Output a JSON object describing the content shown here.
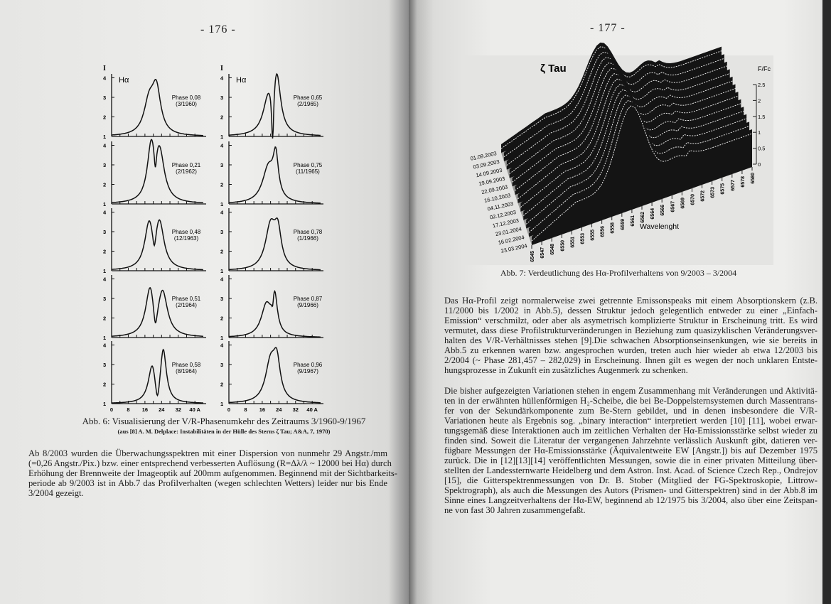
{
  "left_page": {
    "page_number": "- 176 -",
    "figure": {
      "y_axis_label": "I",
      "line_label": "Hα",
      "y_tick_labels": [
        "1",
        "2",
        "3",
        "4"
      ],
      "x_tick_labels": [
        "0",
        "8",
        "16",
        "24",
        "32",
        "40 A"
      ],
      "panels": [
        {
          "phase": "Phase 0,08",
          "date": "(3/1960)"
        },
        {
          "phase": "Phase 0,21",
          "date": "(2/1962)"
        },
        {
          "phase": "Phase 0,48",
          "date": "(12/1963)"
        },
        {
          "phase": "Phase 0,51",
          "date": "(2/1964)"
        },
        {
          "phase": "Phase 0,58",
          "date": "(8/1964)"
        },
        {
          "phase": "Phase 0,65",
          "date": "(2/1965)"
        },
        {
          "phase": "Phase 0,75",
          "date": "(11/1965)"
        },
        {
          "phase": "Phase 0,78",
          "date": "(1/1966)"
        },
        {
          "phase": "Phase 0,87",
          "date": "(9/1966)"
        },
        {
          "phase": "Phase 0,96",
          "date": "(9/1967)"
        }
      ]
    },
    "caption": "Abb. 6:  Visualisierung der V/R-Phasenumkehr des Zeitraums 3/1960-9/1967",
    "citation": "(aus [8] A. M. Delplace: Instabilitäten in der Hülle des Sterns ζ Tau; A&A, 7, 1970)",
    "paragraph": [
      "Ab 8/2003 wurden die Überwachungsspektren mit einer Dispersion von nunmehr 29 Angstr./mm",
      "(=0,26 Angstr./Pix.) bzw. einer entsprechend verbesserten Auflösung (R=Δλ/λ ~ 12000 bei Hα) durch",
      "Erhöhung der Brennweite der Imageoptik auf 200mm aufgenommen. Beginnend mit der Sichtbarkeits-",
      "periode ab 9/2003 ist in Abb.7 das Profilverhalten (wegen schlechten Wetters) leider nur bis Ende",
      "3/2004 gezeigt."
    ]
  },
  "right_page": {
    "page_number": "- 177 -",
    "figure": {
      "title": "ζ Tau",
      "z_label": "F/Fc",
      "z_tick_labels": [
        "0",
        "0.5",
        "1",
        "1.5",
        "2",
        "2.5"
      ],
      "dates": [
        "01.09.2003",
        "03.09.2003",
        "14.09.2003",
        "19.09.2003",
        "22.09.2003",
        "16.10.2003",
        "04.11.2003",
        "02.12.2003",
        "17.12.2003",
        "23.01.2004",
        "16.02.2004",
        "23.03.2004"
      ],
      "wavelengths": [
        "6545",
        "6547",
        "6548",
        "6550",
        "6551",
        "6553",
        "6555",
        "6556",
        "6558",
        "6559",
        "6561",
        "6562",
        "6564",
        "6566",
        "6567",
        "6569",
        "6570",
        "6572",
        "6573",
        "6575",
        "6577",
        "6578",
        "6580"
      ],
      "x_label": "Wavelenght"
    },
    "caption": "Abb. 7:  Verdeutlichung des Hα-Profilverhaltens von 9/2003 – 3/2004",
    "paragraph_1": [
      "Das Hα-Profil zeigt normalerweise zwei getrennte Emissonspeaks mit einem Absorptionskern (z.B.",
      "11/2000 bis 1/2002 in Abb.5), dessen Struktur jedoch gelegentlich entweder zu einer „Einfach-",
      "Emission“ verschmilzt, oder aber als asymetrisch komplizierte Struktur in Erscheinung tritt. Es wird",
      "vermutet, dass diese Profilstrukturveränderungen in Beziehung zum quasizyklischen Veränderungsver-",
      "halten des V/R-Verhältnisses stehen [9].Die schwachen Absorptionseinsenkungen, wie sie bereits in",
      "Abb.5 zu erkennen waren bzw. angesprochen wurden, treten auch hier wieder ab etwa 12/2003 bis",
      "2/2004 (~ Phase 281,457 – 282,029) in Erscheinung. Ihnen gilt es wegen der noch unklaren Entste-",
      "hungsprozesse in Zukunft ein zusätzliches Augenmerk zu schenken."
    ],
    "paragraph_2": [
      "Die bisher aufgezeigten Variationen stehen in engem Zusammenhang mit Veränderungen und Aktivitä-",
      "ten in der erwähnten hüllenförmigen H₂-Scheibe, die bei Be-Doppelsternsystemen durch Massentrans-",
      "fer von der Sekundärkomponente zum Be-Stern gebildet, und in denen insbesondere die V/R-",
      "Variationen heute als Ergebnis sog. „binary interaction“ interpretiert werden [10] [11], wobei erwar-",
      "tungsgemäß diese Interaktionen auch im zeitlichen Verhalten der Hα-Emissionsstärke selbst wieder zu",
      "finden sind. Soweit die Literatur der vergangenen Jahrzehnte verlässlich Auskunft gibt, datieren ver-",
      "fügbare Messungen der Hα-Emissionsstärke (Äquivalentweite EW [Angstr.]) bis auf Dezember 1975",
      "zurück. Die in [12][13][14] veröffentlichten Messungen, sowie die in einer privaten Mitteilung über-",
      "stellten der Landessternwarte Heidelberg und dem Astron. Inst. Acad. of Science Czech Rep., Ondrejov",
      "[15], die Gitterspektrenmessungen von Dr. B. Stober (Mitglied der FG-Spektroskopie, Littrow-",
      "Spektrograph), als auch die Messungen des Autors (Prismen- und Gitterspektren) sind in der Abb.8 im",
      "Sinne eines Langzeitverhaltens der Hα-EW, beginnend ab 12/1975 bis 3/2004, also über eine Zeitspan-",
      "ne von fast 30 Jahren zusammengefaßt."
    ]
  }
}
